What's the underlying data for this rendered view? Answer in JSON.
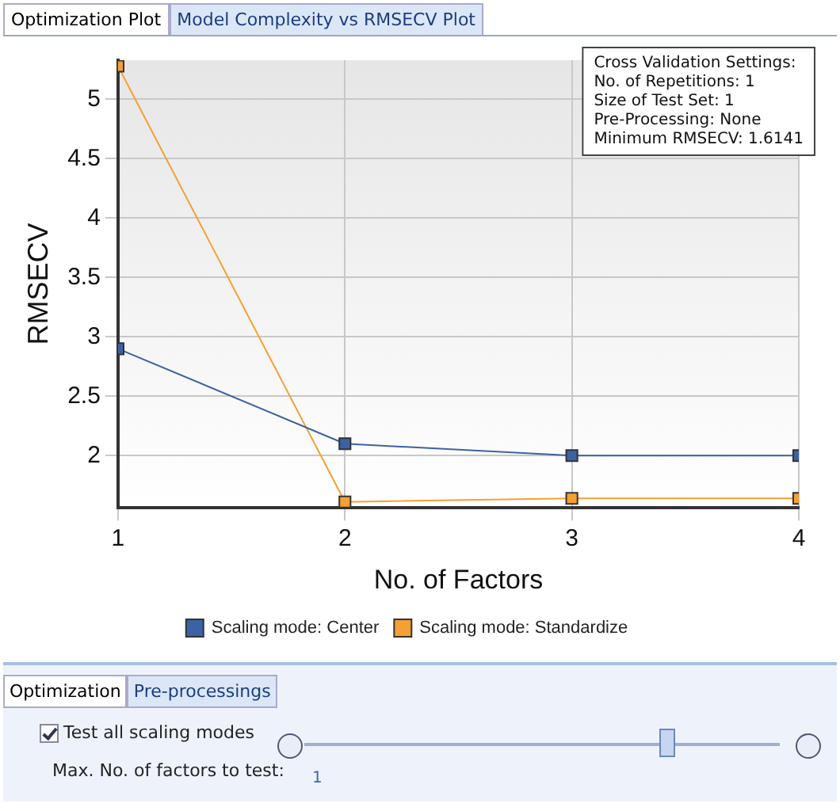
{
  "chart_data": {
    "type": "line",
    "xlabel": "No. of Factors",
    "ylabel": "RMSECV",
    "x": [
      1,
      2,
      3,
      4
    ],
    "series": [
      {
        "name": "Scaling mode: Center",
        "color": "#3d62a3",
        "values": [
          2.9,
          2.1,
          2.0,
          2.0
        ]
      },
      {
        "name": "Scaling mode: Standardize",
        "color": "#f5a033",
        "values": [
          5.28,
          1.61,
          1.64,
          1.64
        ]
      }
    ],
    "xlim": [
      1,
      4
    ],
    "xticks": [
      1,
      2,
      3,
      4
    ],
    "ylim": [
      1.56,
      5.33
    ],
    "yticks": [
      2,
      2.5,
      3,
      3.5,
      4,
      4.5,
      5
    ],
    "grid": true,
    "legend": "bottom",
    "marker": "square",
    "line_style": "solid",
    "annotations": [
      "Cross Validation Settings:\nNo. of Repetitions: 1\nSize of Test Set: 1\nPre-Processing: None\nMinimum RMSECV: 1.6141",
      "Optimization Plot",
      "Model Complexity vs RMSECV Plot",
      "Optimization",
      "Pre-processings",
      "Test all scaling modes",
      "Max. No. of factors to test:",
      "1"
    ]
  }
}
